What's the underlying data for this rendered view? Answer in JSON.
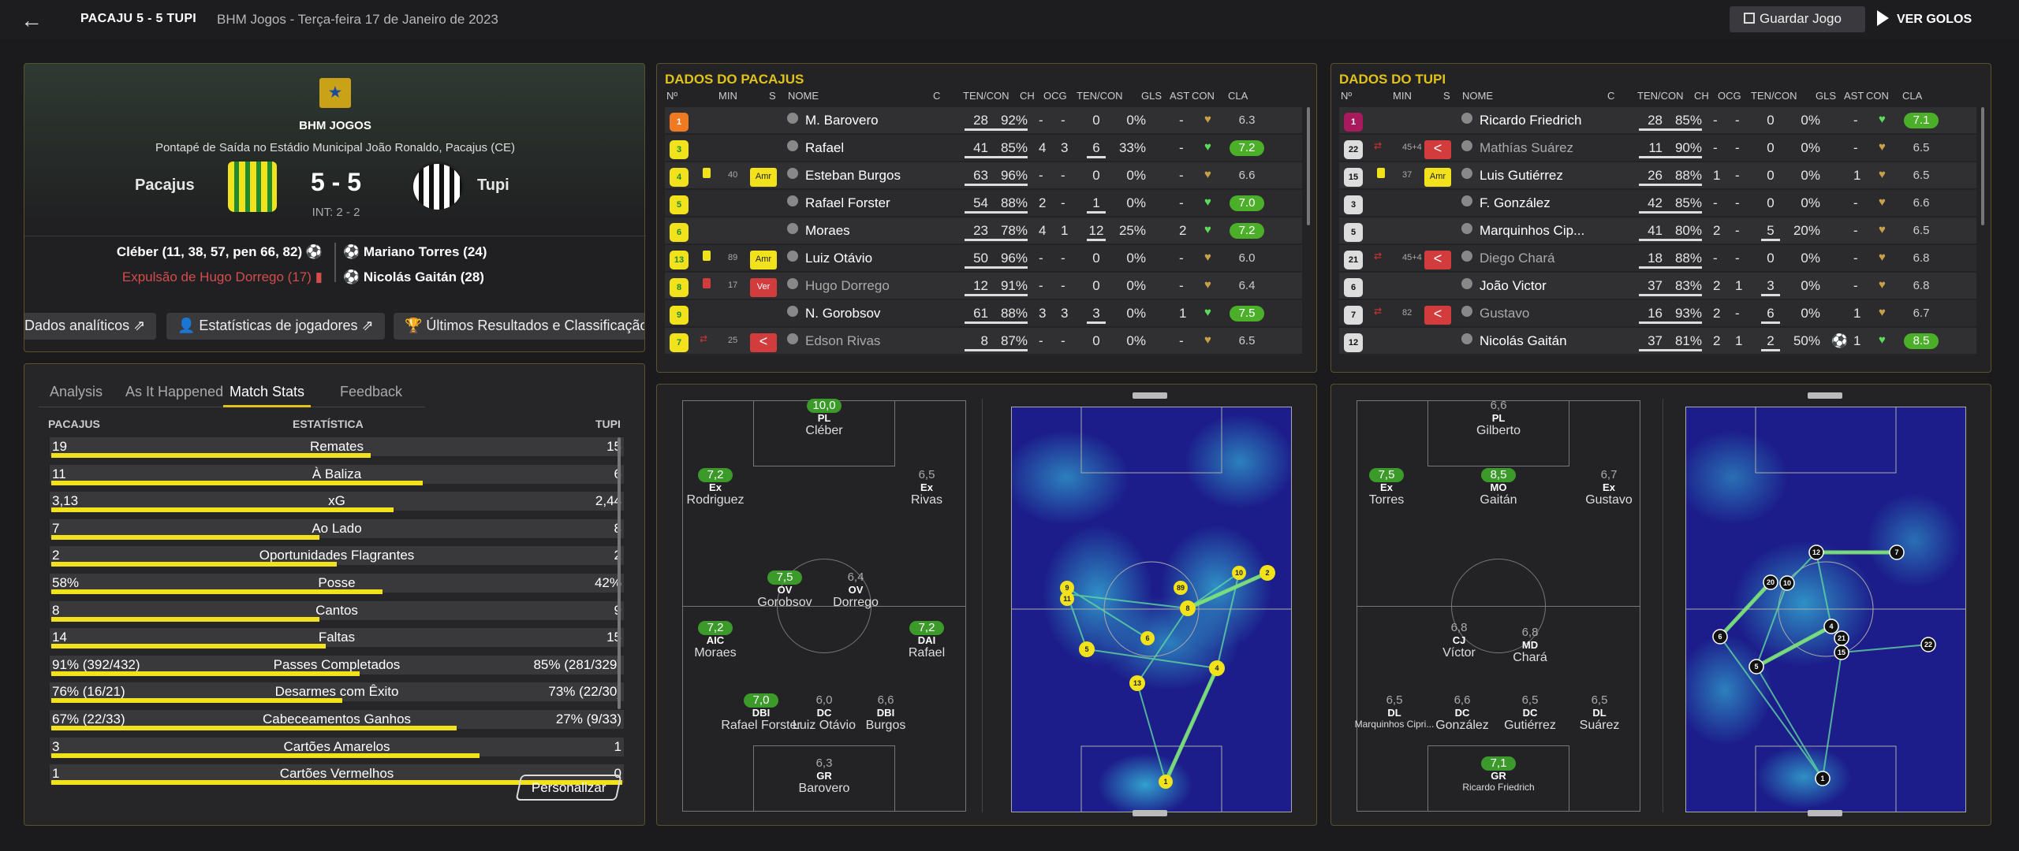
{
  "header": {
    "score_line": "PACAJU  5 - 5  TUPI",
    "meta": "BHM Jogos   -   Terça-feira 17 de Janeiro de 2023",
    "save_label": "Guardar Jogo",
    "goals_label": "VER GOLOS"
  },
  "match": {
    "competition": "BHM JOGOS",
    "venue": "Pontapé de Saída no Estádio Municipal João Ronaldo, Pacajus (CE)",
    "home": "Pacajus",
    "away": "Tupi",
    "score": "5 - 5",
    "interval": "INT: 2 - 2",
    "home_scorers": "Cléber (11, 38, 57, pen 66, 82) ⚽",
    "home_event": "Expulsão de Hugo Dorrego (17) ▮",
    "away_scorer1": "⚽ Mariano Torres (24)",
    "away_scorer2": "⚽ Nicolás Gaitán (28)",
    "tabs": [
      "Dados analíticos ⇗",
      "👤 Estatísticas de jogadores ⇗",
      "🏆 Últimos Resultados e Classificação"
    ]
  },
  "stats": {
    "tabs": [
      "Analysis",
      "As It Happened",
      "Match Stats",
      "Feedback"
    ],
    "head_home": "PACAJUS",
    "head_stat": "ESTATÍSTICA",
    "head_away": "TUPI",
    "rows": [
      {
        "l": "19",
        "c": "Remates",
        "r": "15",
        "pct": 0.56
      },
      {
        "l": "11",
        "c": "À Baliza",
        "r": "6",
        "pct": 0.65
      },
      {
        "l": "3,13",
        "c": "xG",
        "r": "2,44",
        "pct": 0.6
      },
      {
        "l": "7",
        "c": "Ao Lado",
        "r": "8",
        "pct": 0.47
      },
      {
        "l": "2",
        "c": "Oportunidades Flagrantes",
        "r": "2",
        "pct": 0.5
      },
      {
        "l": "58%",
        "c": "Posse",
        "r": "42%",
        "pct": 0.58
      },
      {
        "l": "8",
        "c": "Cantos",
        "r": "9",
        "pct": 0.47
      },
      {
        "l": "14",
        "c": "Faltas",
        "r": "15",
        "pct": 0.48
      },
      {
        "l": "91% (392/432)",
        "c": "Passes Completados",
        "r": "85% (281/329)",
        "pct": 0.54
      },
      {
        "l": "76% (16/21)",
        "c": "Desarmes com Êxito",
        "r": "73% (22/30)",
        "pct": 0.51
      },
      {
        "l": "67% (22/33)",
        "c": "Cabeceamentos Ganhos",
        "r": "27% (9/33)",
        "pct": 0.71
      },
      {
        "l": "3",
        "c": "Cartões Amarelos",
        "r": "1",
        "pct": 0.75
      },
      {
        "l": "1",
        "c": "Cartões Vermelhos",
        "r": "0",
        "pct": 1.0
      }
    ],
    "customize": "Personalizar"
  },
  "table_headers": [
    "Nº",
    "MIN",
    "S",
    "NOME",
    "C",
    "TEN/CON",
    "CH",
    "OCG",
    "TEN/CON",
    "GLS",
    "AST",
    "CON",
    "CLA"
  ],
  "home_table": {
    "title": "DADOS DO PACAJUS",
    "rows": [
      {
        "n": "1",
        "min": "",
        "card": "",
        "badge": "",
        "name": "M. Barovero",
        "tc": "28",
        "pc": "92%",
        "ch": "-",
        "ocg": "-",
        "t2": "0",
        "p2": "0%",
        "gls": "",
        "ast": "-",
        "cla": "6.3",
        "hi": false,
        "gk": true
      },
      {
        "n": "3",
        "min": "",
        "card": "",
        "badge": "",
        "name": "Rafael",
        "tc": "41",
        "pc": "85%",
        "ch": "4",
        "ocg": "3",
        "t2": "6",
        "p2": "33%",
        "gls": "",
        "ast": "-",
        "cla": "7.2",
        "hi": true
      },
      {
        "n": "4",
        "min": "40",
        "card": "y",
        "badge": "Amr",
        "name": "Esteban Burgos",
        "tc": "63",
        "pc": "96%",
        "ch": "-",
        "ocg": "-",
        "t2": "0",
        "p2": "0%",
        "gls": "",
        "ast": "-",
        "cla": "6.6",
        "hi": false
      },
      {
        "n": "5",
        "min": "",
        "card": "",
        "badge": "",
        "name": "Rafael Forster",
        "tc": "54",
        "pc": "88%",
        "ch": "2",
        "ocg": "-",
        "t2": "1",
        "p2": "0%",
        "gls": "",
        "ast": "-",
        "cla": "7.0",
        "hi": true
      },
      {
        "n": "6",
        "min": "",
        "card": "",
        "badge": "",
        "name": "Moraes",
        "tc": "23",
        "pc": "78%",
        "ch": "4",
        "ocg": "1",
        "t2": "12",
        "p2": "25%",
        "gls": "",
        "ast": "2",
        "cla": "7.2",
        "hi": true
      },
      {
        "n": "13",
        "min": "89",
        "card": "y",
        "badge": "Amr",
        "name": "Luiz Otávio",
        "tc": "50",
        "pc": "96%",
        "ch": "-",
        "ocg": "-",
        "t2": "0",
        "p2": "0%",
        "gls": "",
        "ast": "-",
        "cla": "6.0",
        "hi": false
      },
      {
        "n": "8",
        "min": "17",
        "card": "r",
        "badge": "Ver",
        "name": "Hugo Dorrego",
        "tc": "12",
        "pc": "91%",
        "ch": "-",
        "ocg": "-",
        "t2": "0",
        "p2": "0%",
        "gls": "",
        "ast": "-",
        "cla": "6.4",
        "hi": false
      },
      {
        "n": "9",
        "min": "",
        "card": "",
        "badge": "",
        "name": "N. Gorobsov",
        "tc": "61",
        "pc": "88%",
        "ch": "3",
        "ocg": "3",
        "t2": "3",
        "p2": "0%",
        "gls": "",
        "ast": "1",
        "cla": "7.5",
        "hi": true
      },
      {
        "n": "7",
        "min": "25",
        "card": "sub",
        "badge": "<",
        "name": "Edson Rivas",
        "tc": "8",
        "pc": "87%",
        "ch": "-",
        "ocg": "-",
        "t2": "0",
        "p2": "0%",
        "gls": "",
        "ast": "-",
        "cla": "6.5",
        "hi": false
      }
    ]
  },
  "away_table": {
    "title": "DADOS DO TUPI",
    "rows": [
      {
        "n": "1",
        "min": "",
        "card": "",
        "badge": "",
        "name": "Ricardo Friedrich",
        "tc": "28",
        "pc": "85%",
        "ch": "-",
        "ocg": "-",
        "t2": "0",
        "p2": "0%",
        "gls": "",
        "ast": "-",
        "cla": "7.1",
        "hi": true,
        "gk": true
      },
      {
        "n": "22",
        "min": "45+4",
        "card": "sub",
        "badge": "<",
        "name": "Mathías Suárez",
        "tc": "11",
        "pc": "90%",
        "ch": "-",
        "ocg": "-",
        "t2": "0",
        "p2": "0%",
        "gls": "",
        "ast": "-",
        "cla": "6.5",
        "hi": false
      },
      {
        "n": "15",
        "min": "37",
        "card": "y",
        "badge": "Amr",
        "name": "Luis Gutiérrez",
        "tc": "26",
        "pc": "88%",
        "ch": "1",
        "ocg": "-",
        "t2": "0",
        "p2": "0%",
        "gls": "",
        "ast": "1",
        "cla": "6.5",
        "hi": false
      },
      {
        "n": "3",
        "min": "",
        "card": "",
        "badge": "",
        "name": "F. González",
        "tc": "42",
        "pc": "85%",
        "ch": "-",
        "ocg": "-",
        "t2": "0",
        "p2": "0%",
        "gls": "",
        "ast": "-",
        "cla": "6.6",
        "hi": false
      },
      {
        "n": "5",
        "min": "",
        "card": "",
        "badge": "",
        "name": "Marquinhos Cip...",
        "tc": "41",
        "pc": "80%",
        "ch": "2",
        "ocg": "-",
        "t2": "5",
        "p2": "20%",
        "gls": "",
        "ast": "-",
        "cla": "6.5",
        "hi": false
      },
      {
        "n": "21",
        "min": "45+4",
        "card": "sub",
        "badge": "<",
        "name": "Diego Chará",
        "tc": "18",
        "pc": "88%",
        "ch": "-",
        "ocg": "-",
        "t2": "0",
        "p2": "0%",
        "gls": "",
        "ast": "-",
        "cla": "6.8",
        "hi": false
      },
      {
        "n": "6",
        "min": "",
        "card": "",
        "badge": "",
        "name": "João Victor",
        "tc": "37",
        "pc": "83%",
        "ch": "2",
        "ocg": "1",
        "t2": "3",
        "p2": "0%",
        "gls": "",
        "ast": "-",
        "cla": "6.8",
        "hi": false
      },
      {
        "n": "7",
        "min": "82",
        "card": "sub",
        "badge": "<",
        "name": "Gustavo",
        "tc": "16",
        "pc": "93%",
        "ch": "2",
        "ocg": "-",
        "t2": "6",
        "p2": "0%",
        "gls": "",
        "ast": "1",
        "cla": "6.7",
        "hi": false
      },
      {
        "n": "12",
        "min": "",
        "card": "",
        "badge": "",
        "name": "Nicolás Gaitán",
        "tc": "37",
        "pc": "81%",
        "ch": "2",
        "ocg": "1",
        "t2": "2",
        "p2": "50%",
        "gls": "⚽",
        "ast": "1",
        "cla": "8.5",
        "hi": true
      }
    ]
  },
  "home_pitch": [
    {
      "r": "10,0",
      "hi": true,
      "pos": "PL",
      "nm": "Cléber"
    },
    {
      "r": "7,2",
      "hi": true,
      "pos": "Ex",
      "nm": "Rodriguez"
    },
    {
      "r": "6,5",
      "hi": false,
      "pos": "Ex",
      "nm": "Rivas"
    },
    {
      "r": "7,5",
      "hi": true,
      "pos": "OV",
      "nm": "Gorobsov"
    },
    {
      "r": "6,4",
      "hi": false,
      "pos": "OV",
      "nm": "Dorrego"
    },
    {
      "r": "7,2",
      "hi": true,
      "pos": "AIC",
      "nm": "Moraes"
    },
    {
      "r": "7,2",
      "hi": true,
      "pos": "DAI",
      "nm": "Rafael"
    },
    {
      "r": "7,0",
      "hi": true,
      "pos": "DBI",
      "nm": "Rafael Forster"
    },
    {
      "r": "6,0",
      "hi": false,
      "pos": "DC",
      "nm": "Luiz Otávio"
    },
    {
      "r": "6,6",
      "hi": false,
      "pos": "DBI",
      "nm": "Burgos"
    },
    {
      "r": "6,3",
      "hi": false,
      "pos": "GR",
      "nm": "Barovero"
    }
  ],
  "away_pitch": [
    {
      "r": "6,6",
      "hi": false,
      "pos": "PL",
      "nm": "Gilberto"
    },
    {
      "r": "7,5",
      "hi": true,
      "pos": "Ex",
      "nm": "Torres"
    },
    {
      "r": "8,5",
      "hi": true,
      "pos": "MO",
      "nm": "Gaitán"
    },
    {
      "r": "6,7",
      "hi": false,
      "pos": "Ex",
      "nm": "Gustavo"
    },
    {
      "r": "6,8",
      "hi": false,
      "pos": "CJ",
      "nm": "Víctor"
    },
    {
      "r": "6,8",
      "hi": false,
      "pos": "MD",
      "nm": "Chará"
    },
    {
      "r": "6,5",
      "hi": false,
      "pos": "DL",
      "nm": "Marquinhos Cipri..."
    },
    {
      "r": "6,6",
      "hi": false,
      "pos": "DC",
      "nm": "González"
    },
    {
      "r": "6,5",
      "hi": false,
      "pos": "DC",
      "nm": "Gutiérrez"
    },
    {
      "r": "6,5",
      "hi": false,
      "pos": "DL",
      "nm": "Suárez"
    },
    {
      "r": "7,1",
      "hi": true,
      "pos": "GR",
      "nm": "Ricardo Friedrich"
    }
  ],
  "colors": {
    "accent": "#e1c21a",
    "rating_hi": "#4caf2a",
    "card_red": "#d23c3c",
    "kit_home": "#f1e21c"
  }
}
